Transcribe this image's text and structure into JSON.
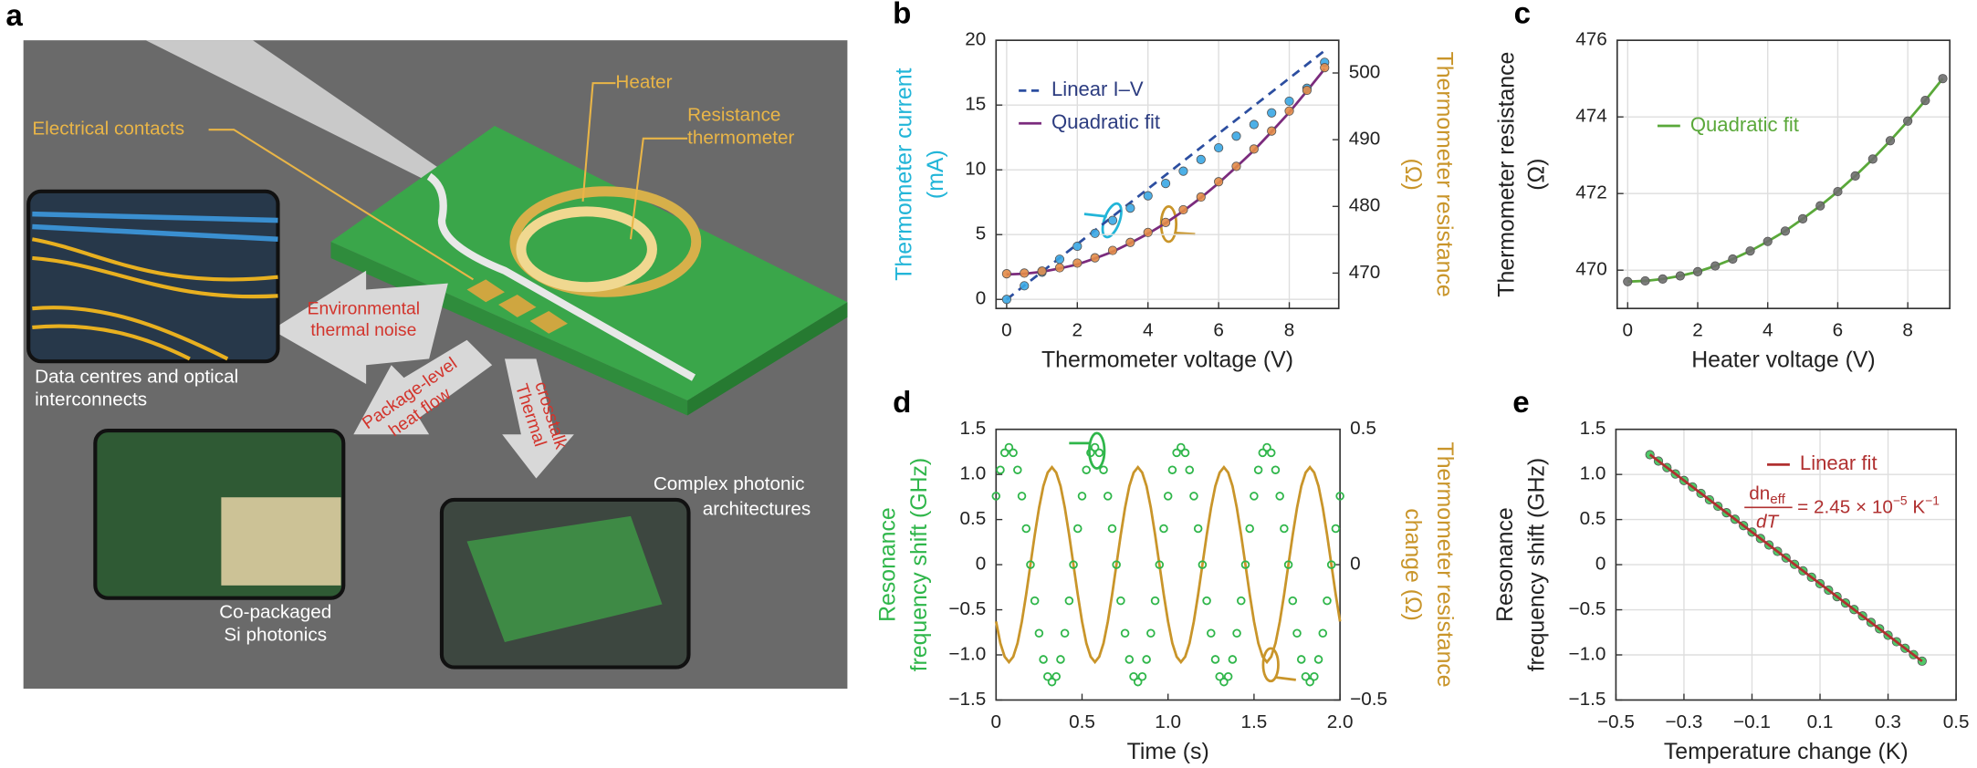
{
  "panel_a": {
    "label": "a",
    "heater": "Heater",
    "resistance_thermometer": [
      "Resistance",
      "thermometer"
    ],
    "electrical_contacts": "Electrical contacts",
    "environmental_noise": [
      "Environmental",
      "thermal noise"
    ],
    "package_heat_flow": [
      "Package-level",
      "heat flow"
    ],
    "thermal_crosstalk": [
      "Thermal",
      "crosstalk"
    ],
    "data_centres": [
      "Data centres and optical",
      "interconnects"
    ],
    "co_packaged": [
      "Co-packaged",
      "Si photonics"
    ],
    "complex_photonic": [
      "Complex photonic",
      "architectures"
    ]
  },
  "chart_data": [
    {
      "type": "line",
      "panel_label": "b",
      "xlabel": "Thermometer voltage (V)",
      "ylabel": [
        "Thermometer current",
        "(mA)"
      ],
      "ylabel_color": "#22b5d8",
      "y2label": [
        "Thermometer resistance",
        "(Ω)"
      ],
      "y2label_color": "#c9952a",
      "xlim": [
        -0.3,
        9.4
      ],
      "xticks": [
        0,
        2,
        4,
        6,
        8
      ],
      "ylim": [
        -0.7,
        20
      ],
      "yticks": [
        0,
        5,
        10,
        15,
        20
      ],
      "y2lim": [
        464.7,
        504.9
      ],
      "y2ticks": [
        470,
        480,
        490,
        500
      ],
      "grid": true,
      "legend": "upper left",
      "series": [
        {
          "name": "Linear I–V",
          "color": "#2c4ea0",
          "style": "dashed",
          "x": [
            0,
            9
          ],
          "values": [
            0,
            19.2
          ]
        },
        {
          "name": "Quadratic fit",
          "color": "#7b2b7d",
          "style": "solid",
          "axis": "y2",
          "x": [
            0,
            0.5,
            1,
            1.5,
            2,
            2.5,
            3,
            3.5,
            4,
            4.5,
            5,
            5.5,
            6,
            6.5,
            7,
            7.5,
            8,
            8.5,
            9
          ],
          "values": [
            469.8,
            469.9,
            470.2,
            470.7,
            471.3,
            472.2,
            473.2,
            474.5,
            475.9,
            477.5,
            479.3,
            481.3,
            483.5,
            485.9,
            488.4,
            491.2,
            494.1,
            497.3,
            500.6
          ]
        },
        {
          "color": "#3aa7e4",
          "style": "markers",
          "x": [
            0,
            0.5,
            1,
            1.5,
            2,
            2.5,
            3,
            3.5,
            4,
            4.5,
            5,
            5.5,
            6,
            6.5,
            7,
            7.5,
            8,
            8.5,
            9
          ],
          "values": [
            0,
            1.05,
            2.1,
            3.1,
            4.1,
            5.1,
            6.1,
            7.05,
            8.0,
            8.95,
            9.9,
            10.8,
            11.7,
            12.6,
            13.5,
            14.4,
            15.3,
            16.3,
            18.3
          ]
        },
        {
          "color": "#e38c48",
          "style": "markers",
          "axis": "y2",
          "x": [
            0,
            0.5,
            1,
            1.5,
            2,
            2.5,
            3,
            3.5,
            4,
            4.5,
            5,
            5.5,
            6,
            6.5,
            7,
            7.5,
            8,
            8.5,
            9
          ],
          "values": [
            469.9,
            470.0,
            470.3,
            470.8,
            471.5,
            472.3,
            473.4,
            474.6,
            476.1,
            477.6,
            479.5,
            481.4,
            483.7,
            486.0,
            488.6,
            491.3,
            494.3,
            497.4,
            500.8
          ]
        }
      ]
    },
    {
      "type": "line",
      "panel_label": "c",
      "xlabel": "Heater voltage (V)",
      "ylabel": [
        "Thermometer resistance",
        "(Ω)"
      ],
      "ylabel_color": "#222",
      "xlim": [
        -0.3,
        9.2
      ],
      "xticks": [
        0,
        2,
        4,
        6,
        8
      ],
      "ylim": [
        469,
        476
      ],
      "yticks": [
        470,
        472,
        474,
        476
      ],
      "grid": true,
      "legend": "center left",
      "series": [
        {
          "name": "Quadratic fit",
          "color": "#5aa83a",
          "style": "solid",
          "x": [
            0,
            0.5,
            1,
            1.5,
            2,
            2.5,
            3,
            3.5,
            4,
            4.5,
            5,
            5.5,
            6,
            6.5,
            7,
            7.5,
            8,
            8.5,
            9
          ],
          "values": [
            469.7,
            469.72,
            469.77,
            469.85,
            469.96,
            470.11,
            470.29,
            470.5,
            470.75,
            471.02,
            471.34,
            471.68,
            472.05,
            472.46,
            472.9,
            473.38,
            473.89,
            474.43,
            475.0
          ]
        },
        {
          "color": "#6e6e6e",
          "style": "markers",
          "x": [
            0,
            0.5,
            1,
            1.5,
            2,
            2.5,
            3,
            3.5,
            4,
            4.5,
            5,
            5.5,
            6,
            6.5,
            7,
            7.5,
            8,
            8.5,
            9
          ],
          "values": [
            469.7,
            469.72,
            469.77,
            469.85,
            469.96,
            470.11,
            470.29,
            470.5,
            470.75,
            471.02,
            471.34,
            471.68,
            472.05,
            472.46,
            472.9,
            473.38,
            473.89,
            474.43,
            475.0
          ]
        }
      ]
    },
    {
      "type": "line",
      "panel_label": "d",
      "xlabel": "Time (s)",
      "ylabel": [
        "Resonance",
        "frequency shift (GHz)"
      ],
      "ylabel_color": "#2fb64a",
      "y2label": [
        "Thermometer resistance",
        "change (Ω)"
      ],
      "y2label_color": "#c9952a",
      "xlim": [
        0,
        2
      ],
      "xticks": [
        0,
        0.5,
        {
          "value": 1,
          "label": "1.0"
        },
        1.5,
        {
          "value": 2,
          "label": "2.0"
        }
      ],
      "ylim": [
        -1.5,
        1.5
      ],
      "yticks": [
        {
          "value": -1.5,
          "label": "−1.5"
        },
        {
          "value": -1,
          "label": "−1.0"
        },
        {
          "value": -0.5,
          "label": "−0.5"
        },
        0,
        0.5,
        {
          "value": 1,
          "label": "1.0"
        },
        1.5
      ],
      "y2lim": [
        -0.5,
        0.5
      ],
      "y2ticks": [
        {
          "value": -0.5,
          "label": "−0.5"
        },
        0,
        0.5
      ],
      "grid": false,
      "series": [
        {
          "color": "#c9952a",
          "style": "solid",
          "axis": "y2",
          "x": [
            0,
            0.025,
            0.05,
            0.075,
            0.1,
            0.125,
            0.15,
            0.175,
            0.2,
            0.225,
            0.25,
            0.275,
            0.3,
            0.325,
            0.35,
            0.375,
            0.4,
            0.425,
            0.45,
            0.475,
            0.5,
            0.525,
            0.55,
            0.575,
            0.6,
            0.625,
            0.65,
            0.675,
            0.7,
            0.725,
            0.75,
            0.775,
            0.8,
            0.825,
            0.85,
            0.875,
            0.9,
            0.925,
            0.95,
            0.975,
            1,
            1.025,
            1.05,
            1.075,
            1.1,
            1.125,
            1.15,
            1.175,
            1.2,
            1.225,
            1.25,
            1.275,
            1.3,
            1.325,
            1.35,
            1.375,
            1.4,
            1.425,
            1.45,
            1.475,
            1.5,
            1.525,
            1.55,
            1.575,
            1.6,
            1.625,
            1.65,
            1.675,
            1.7,
            1.725,
            1.75,
            1.775,
            1.8,
            1.825,
            1.85,
            1.875,
            1.9,
            1.925,
            1.95,
            1.975,
            2
          ],
          "values": [
            -0.21,
            -0.29,
            -0.34,
            -0.36,
            -0.34,
            -0.29,
            -0.21,
            -0.11,
            0,
            0.11,
            0.21,
            0.29,
            0.34,
            0.36,
            0.34,
            0.29,
            0.21,
            0.11,
            0,
            -0.11,
            -0.21,
            -0.29,
            -0.34,
            -0.36,
            -0.34,
            -0.29,
            -0.21,
            -0.11,
            0,
            0.11,
            0.21,
            0.29,
            0.34,
            0.36,
            0.34,
            0.29,
            0.21,
            0.11,
            0,
            -0.11,
            -0.21,
            -0.29,
            -0.34,
            -0.36,
            -0.34,
            -0.29,
            -0.21,
            -0.11,
            0,
            0.11,
            0.21,
            0.29,
            0.34,
            0.36,
            0.34,
            0.29,
            0.21,
            0.11,
            0,
            -0.11,
            -0.21,
            -0.29,
            -0.34,
            -0.36,
            -0.34,
            -0.29,
            -0.21,
            -0.11,
            0,
            0.11,
            0.21,
            0.29,
            0.34,
            0.36,
            0.34,
            0.29,
            0.21,
            0.11,
            0,
            -0.11,
            -0.21
          ]
        },
        {
          "color": "#2fb64a",
          "style": "hollow-markers",
          "x": [
            0,
            0.025,
            0.05,
            0.075,
            0.1,
            0.125,
            0.15,
            0.175,
            0.2,
            0.225,
            0.25,
            0.275,
            0.3,
            0.325,
            0.35,
            0.375,
            0.4,
            0.425,
            0.45,
            0.475,
            0.5,
            0.525,
            0.55,
            0.575,
            0.6,
            0.625,
            0.65,
            0.675,
            0.7,
            0.725,
            0.75,
            0.775,
            0.8,
            0.825,
            0.85,
            0.875,
            0.9,
            0.925,
            0.95,
            0.975,
            1,
            1.025,
            1.05,
            1.075,
            1.1,
            1.125,
            1.15,
            1.175,
            1.2,
            1.225,
            1.25,
            1.275,
            1.3,
            1.325,
            1.35,
            1.375,
            1.4,
            1.425,
            1.45,
            1.475,
            1.5,
            1.525,
            1.55,
            1.575,
            1.6,
            1.625,
            1.65,
            1.675,
            1.7,
            1.725,
            1.75,
            1.775,
            1.8,
            1.825,
            1.85,
            1.875,
            1.9,
            1.925,
            1.95,
            1.975,
            2
          ],
          "values": [
            0.76,
            1.05,
            1.24,
            1.3,
            1.24,
            1.05,
            0.76,
            0.4,
            0,
            -0.4,
            -0.76,
            -1.05,
            -1.24,
            -1.3,
            -1.24,
            -1.05,
            -0.76,
            -0.4,
            0,
            0.4,
            0.76,
            1.05,
            1.24,
            1.3,
            1.24,
            1.05,
            0.76,
            0.4,
            0,
            -0.4,
            -0.76,
            -1.05,
            -1.24,
            -1.3,
            -1.24,
            -1.05,
            -0.76,
            -0.4,
            0,
            0.4,
            0.76,
            1.05,
            1.24,
            1.3,
            1.24,
            1.05,
            0.76,
            0.4,
            0,
            -0.4,
            -0.76,
            -1.05,
            -1.24,
            -1.3,
            -1.24,
            -1.05,
            -0.76,
            -0.4,
            0,
            0.4,
            0.76,
            1.05,
            1.24,
            1.3,
            1.24,
            1.05,
            0.76,
            0.4,
            0,
            -0.4,
            -0.76,
            -1.05,
            -1.24,
            -1.3,
            -1.24,
            -1.05,
            -0.76,
            -0.4,
            0,
            0.4,
            0.76
          ]
        }
      ]
    },
    {
      "type": "scatter",
      "panel_label": "e",
      "xlabel": "Temperature change (K)",
      "ylabel": [
        "Resonance",
        "frequency shift (GHz)"
      ],
      "ylabel_color": "#222",
      "xlim": [
        -0.5,
        0.5
      ],
      "xticks": [
        {
          "value": -0.5,
          "label": "−0.5"
        },
        {
          "value": -0.3,
          "label": "−0.3"
        },
        {
          "value": -0.1,
          "label": "−0.1"
        },
        0.1,
        0.3,
        0.5
      ],
      "ylim": [
        -1.5,
        1.5
      ],
      "yticks": [
        {
          "value": -1.5,
          "label": "−1.5"
        },
        {
          "value": -1,
          "label": "−1.0"
        },
        {
          "value": -0.5,
          "label": "−0.5"
        },
        0,
        0.5,
        {
          "value": 1,
          "label": "1.0"
        },
        1.5
      ],
      "grid": true,
      "legend": "upper right",
      "annotation": {
        "numerator": "dn",
        "numerator_sub": "eff",
        "denominator": "dT",
        "equals": "= 2.45 × 10",
        "exponent": "−5",
        "unit": " K",
        "unit_exponent": "−1"
      },
      "series": [
        {
          "color": "#3ec35a",
          "style": "markers",
          "x": [
            -0.4,
            -0.375,
            -0.35,
            -0.325,
            -0.3,
            -0.275,
            -0.25,
            -0.225,
            -0.2,
            -0.175,
            -0.15,
            -0.125,
            -0.1,
            -0.075,
            -0.05,
            -0.025,
            0,
            0.025,
            0.05,
            0.075,
            0.1,
            0.125,
            0.15,
            0.175,
            0.2,
            0.225,
            0.25,
            0.275,
            0.3,
            0.325,
            0.35,
            0.375,
            0.4
          ],
          "values": [
            1.219,
            1.148,
            1.076,
            1.005,
            0.933,
            0.862,
            0.79,
            0.719,
            0.647,
            0.576,
            0.504,
            0.433,
            0.361,
            0.29,
            0.218,
            0.147,
            0.075,
            0.004,
            -0.068,
            -0.139,
            -0.211,
            -0.282,
            -0.354,
            -0.425,
            -0.497,
            -0.568,
            -0.64,
            -0.711,
            -0.783,
            -0.854,
            -0.926,
            -0.997,
            -1.069
          ]
        },
        {
          "name": "Linear fit",
          "color": "#b03030",
          "style": "solid",
          "x": [
            -0.4,
            0.4
          ],
          "values": [
            1.22,
            -1.07
          ]
        }
      ]
    }
  ]
}
